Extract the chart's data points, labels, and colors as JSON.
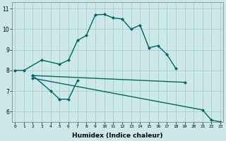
{
  "bg_color": "#cde8e8",
  "grid_color": "#aacccc",
  "line_color": "#006666",
  "line1_x": [
    0,
    1,
    3,
    5,
    6,
    7,
    8,
    9,
    10,
    11,
    12,
    13,
    14,
    15,
    16,
    17,
    18
  ],
  "line1_y": [
    8.0,
    8.0,
    8.5,
    8.3,
    8.5,
    9.45,
    9.7,
    10.7,
    10.72,
    10.55,
    10.5,
    10.0,
    10.2,
    9.1,
    9.2,
    8.78,
    8.1
  ],
  "line2_x": [
    2,
    4,
    5,
    6,
    7
  ],
  "line2_y": [
    7.75,
    7.0,
    6.6,
    6.6,
    7.5
  ],
  "line3_x": [
    2,
    19
  ],
  "line3_y": [
    7.75,
    7.42
  ],
  "line4_x": [
    2,
    21,
    22,
    23
  ],
  "line4_y": [
    7.62,
    6.08,
    5.58,
    5.5
  ],
  "xlim": [
    0,
    23
  ],
  "ylim": [
    5.5,
    11.3
  ],
  "xlabel": "Humidex (Indice chaleur)",
  "xticks": [
    0,
    1,
    2,
    3,
    4,
    5,
    6,
    7,
    8,
    9,
    10,
    11,
    12,
    13,
    14,
    15,
    16,
    17,
    18,
    19,
    20,
    21,
    22,
    23
  ],
  "yticks": [
    6,
    7,
    8,
    9,
    10,
    11
  ],
  "markersize": 2.5,
  "linewidth": 1.0
}
